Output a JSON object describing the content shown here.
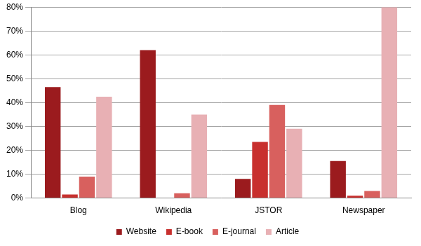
{
  "chart_data": {
    "type": "bar",
    "categories": [
      "Blog",
      "Wikipedia",
      "JSTOR",
      "Newspaper"
    ],
    "series": [
      {
        "name": "Website",
        "color": "#9b1b1e",
        "values": [
          46.5,
          62,
          8,
          15.5
        ]
      },
      {
        "name": "E-book",
        "color": "#c8302e",
        "values": [
          1.5,
          0,
          23.5,
          1
        ]
      },
      {
        "name": "E-journal",
        "color": "#d8605e",
        "values": [
          9,
          2,
          39,
          3
        ]
      },
      {
        "name": "Article",
        "color": "#e8b0b4",
        "values": [
          42.5,
          35,
          29,
          80
        ]
      }
    ],
    "ylim": [
      0,
      80
    ],
    "yticks": [
      {
        "value": 0,
        "label": "0%"
      },
      {
        "value": 10,
        "label": "10%"
      },
      {
        "value": 20,
        "label": "20%"
      },
      {
        "value": 30,
        "label": "30%"
      },
      {
        "value": 40,
        "label": "40%"
      },
      {
        "value": 50,
        "label": "50%"
      },
      {
        "value": 60,
        "label": "60%"
      },
      {
        "value": 70,
        "label": "70%"
      },
      {
        "value": 80,
        "label": "80%"
      }
    ],
    "grid": true,
    "legend": "bottom"
  }
}
